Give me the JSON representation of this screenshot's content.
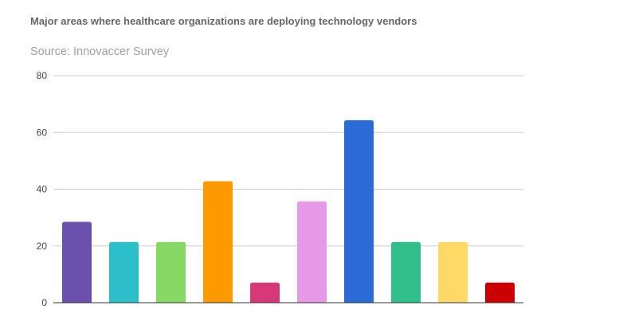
{
  "chart_data": {
    "type": "bar",
    "title": "Major areas where healthcare organizations are deploying technology vendors",
    "subtitle": "Source: Innovaccer Survey",
    "xlabel": "",
    "ylabel": "",
    "ylim": [
      0,
      80
    ],
    "yticks": [
      "0",
      "20",
      "40",
      "60",
      "80"
    ],
    "grid": true,
    "legend": "none",
    "values": [
      28.5,
      21.4,
      21.4,
      42.8,
      7.1,
      35.7,
      64.3,
      21.4,
      21.4,
      7.1
    ],
    "colors": [
      "#6a4fad",
      "#2bbfc9",
      "#86d965",
      "#ff9900",
      "#d63878",
      "#e799e8",
      "#2b6bd6",
      "#2ebf8a",
      "#ffd966",
      "#cc0000"
    ]
  }
}
